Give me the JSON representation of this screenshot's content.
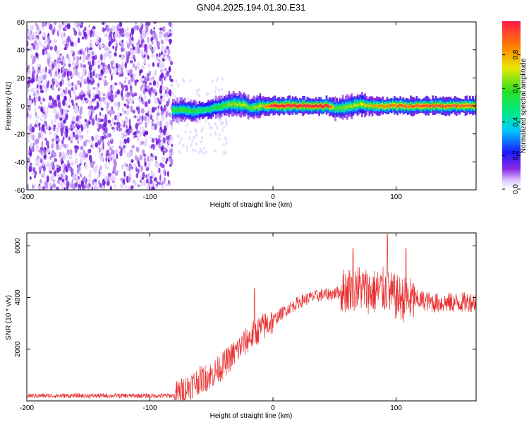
{
  "title": "GN04.2025.194.01.30.E31",
  "chart_data": [
    {
      "type": "heatmap",
      "xlabel": "Height of straight line (km)",
      "ylabel": "Frequency (Hz)",
      "xlim": [
        -200,
        165
      ],
      "ylim": [
        -60,
        60
      ],
      "x_ticks": [
        -200,
        -100,
        0,
        100
      ],
      "y_ticks": [
        -60,
        -40,
        -20,
        0,
        20,
        40,
        60
      ],
      "colorbar": {
        "label": "Normalized spectral amplitude",
        "range": [
          0,
          1
        ],
        "ticks": [
          "0.0",
          "0.2",
          "0.4",
          "0.6",
          "0.8"
        ]
      },
      "noise_region_x": [
        -200,
        -82
      ],
      "signal_ridge": [
        [
          -82,
          -3,
          0.55
        ],
        [
          -75,
          -3,
          0.6
        ],
        [
          -65,
          -4,
          0.55
        ],
        [
          -55,
          -3,
          0.5
        ],
        [
          -45,
          -1,
          0.55
        ],
        [
          -35,
          1,
          0.65
        ],
        [
          -25,
          1,
          0.7
        ],
        [
          -18,
          -2,
          0.6
        ],
        [
          -10,
          0,
          0.75
        ],
        [
          0,
          0,
          1.0
        ],
        [
          20,
          0,
          1.0
        ],
        [
          45,
          0,
          1.0
        ],
        [
          50,
          -2,
          0.6
        ],
        [
          60,
          -1,
          0.65
        ],
        [
          70,
          1,
          0.7
        ],
        [
          80,
          0,
          0.8
        ],
        [
          100,
          0,
          0.9
        ],
        [
          130,
          0,
          0.95
        ],
        [
          165,
          0,
          0.9
        ]
      ]
    },
    {
      "type": "line",
      "xlabel": "Height of straight line (km)",
      "ylabel": "SNR (10 * v/v)",
      "xlim": [
        -200,
        165
      ],
      "ylim": [
        0,
        6500
      ],
      "x_ticks": [
        -200,
        -100,
        0,
        100
      ],
      "y_ticks": [
        2000,
        4000,
        6000
      ],
      "color": "#e83030",
      "series": [
        {
          "x": [
            -200,
            -150,
            -100,
            -80,
            -70,
            -60,
            -50,
            -40,
            -30,
            -20,
            -10,
            0,
            10,
            20,
            30,
            40,
            50,
            60,
            70,
            80,
            90,
            100,
            110,
            120,
            130,
            140,
            150,
            165
          ],
          "y": [
            200,
            200,
            200,
            200,
            500,
            800,
            1000,
            1400,
            1900,
            2400,
            2800,
            3100,
            3500,
            3800,
            4000,
            4100,
            4150,
            4300,
            4400,
            4200,
            4300,
            4000,
            3900,
            3900,
            3800,
            3800,
            3800,
            3850
          ]
        }
      ],
      "peaks": [
        [
          -15,
          4350
        ],
        [
          65,
          5900
        ],
        [
          93,
          6450
        ],
        [
          108,
          5900
        ]
      ]
    }
  ]
}
